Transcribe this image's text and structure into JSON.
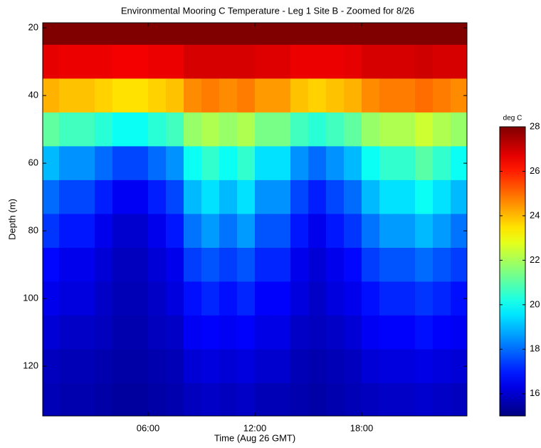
{
  "chart_data": {
    "type": "heatmap",
    "title": "Environmental Mooring C Temperature - Leg 1 Site B - Zoomed for 8/26",
    "xlabel": "Time (Aug 26 GMT)",
    "ylabel": "Depth (m)",
    "colorbar_label": "deg C",
    "colormap": "jet",
    "y_reversed": true,
    "x": [
      0.5,
      1.5,
      2.5,
      3.5,
      4.5,
      5.5,
      6.5,
      7.5,
      8.5,
      9.5,
      10.5,
      11.5,
      12.5,
      13.5,
      14.5,
      15.5,
      16.5,
      17.5,
      18.5,
      19.5,
      20.5,
      21.5,
      22.5,
      23.5
    ],
    "y": [
      20,
      30,
      40,
      50,
      60,
      70,
      80,
      90,
      100,
      110,
      120,
      130
    ],
    "z": [
      [
        28,
        28,
        28,
        28,
        28,
        28,
        28,
        28,
        28,
        28,
        28,
        28,
        28,
        28,
        28,
        28,
        28,
        28,
        28,
        28,
        28,
        28,
        28,
        28
      ],
      [
        26.7,
        26.6,
        26.6,
        26.6,
        26.5,
        26.5,
        26.6,
        26.6,
        26.9,
        26.9,
        26.9,
        26.9,
        26.8,
        26.8,
        26.6,
        26.6,
        26.6,
        26.7,
        26.9,
        26.9,
        26.9,
        27,
        26.9,
        26.9
      ],
      [
        24.1,
        23.9,
        23.9,
        23.7,
        23.5,
        23.5,
        23.7,
        23.9,
        24.6,
        24.8,
        24.6,
        24.8,
        24.4,
        24.4,
        23.9,
        23.7,
        23.9,
        24.1,
        24.6,
        24.8,
        24.8,
        25,
        24.8,
        24.6
      ],
      [
        21.1,
        20.7,
        20.7,
        20.4,
        20,
        20,
        20.4,
        20.7,
        21.8,
        22.1,
        21.8,
        22.1,
        21.4,
        21.4,
        20.7,
        20.4,
        20.7,
        21.1,
        21.8,
        22.1,
        22.1,
        22.5,
        22.1,
        21.8
      ],
      [
        19,
        18.5,
        18.5,
        18,
        17.5,
        17.5,
        18,
        18.5,
        20,
        20.5,
        20,
        20.5,
        19.5,
        19.5,
        18.5,
        18,
        18.5,
        19,
        20,
        20.5,
        20.5,
        21,
        20.5,
        20
      ],
      [
        18,
        17.5,
        17.5,
        17,
        16.5,
        16.5,
        17,
        17.5,
        19,
        19.5,
        19,
        19.5,
        18.5,
        18.5,
        17.5,
        17,
        17.5,
        18,
        19,
        19.5,
        19.5,
        20,
        19.5,
        19
      ],
      [
        17.3,
        16.9,
        16.9,
        16.4,
        16,
        16,
        16.4,
        16.9,
        18.1,
        18.6,
        18.1,
        18.6,
        17.7,
        17.7,
        16.9,
        16.4,
        16.9,
        17.3,
        18.1,
        18.6,
        18.6,
        19,
        18.6,
        18.1
      ],
      [
        16.7,
        16.4,
        16.4,
        16.1,
        15.8,
        15.8,
        16.1,
        16.4,
        17.4,
        17.7,
        17.4,
        17.7,
        17.1,
        17.1,
        16.4,
        16.1,
        16.4,
        16.7,
        17.4,
        17.7,
        17.7,
        18,
        17.7,
        17.4
      ],
      [
        16.4,
        16.2,
        16.2,
        15.9,
        15.7,
        15.7,
        15.9,
        16.2,
        16.8,
        17.1,
        16.8,
        17.1,
        16.6,
        16.6,
        16.2,
        15.9,
        16.2,
        16.4,
        16.8,
        17.1,
        17.1,
        17.3,
        17.1,
        16.8
      ],
      [
        16.1,
        15.9,
        15.9,
        15.8,
        15.6,
        15.6,
        15.8,
        15.9,
        16.5,
        16.6,
        16.5,
        16.6,
        16.3,
        16.3,
        15.9,
        15.8,
        15.9,
        16.1,
        16.5,
        16.6,
        16.6,
        16.8,
        16.6,
        16.5
      ],
      [
        15.8,
        15.7,
        15.7,
        15.6,
        15.5,
        15.5,
        15.6,
        15.7,
        16.1,
        16.2,
        16.1,
        16.2,
        16,
        16,
        15.7,
        15.6,
        15.7,
        15.8,
        16.1,
        16.2,
        16.2,
        16.3,
        16.2,
        16.1
      ],
      [
        15.7,
        15.6,
        15.6,
        15.5,
        15.4,
        15.4,
        15.5,
        15.6,
        15.8,
        15.9,
        15.8,
        15.9,
        15.7,
        15.7,
        15.6,
        15.5,
        15.6,
        15.7,
        15.8,
        15.9,
        15.9,
        16,
        15.9,
        15.8
      ]
    ],
    "xlim": [
      0.08,
      23.92
    ],
    "xticks": [
      {
        "value": 6,
        "label": "06:00"
      },
      {
        "value": 12,
        "label": "12:00"
      },
      {
        "value": 18,
        "label": "18:00"
      }
    ],
    "ylim": [
      18.5,
      134.7
    ],
    "yticks": [
      20,
      40,
      60,
      80,
      100,
      120
    ],
    "clim": [
      15,
      28
    ],
    "cticks": [
      16,
      18,
      20,
      22,
      24,
      26,
      28
    ]
  }
}
